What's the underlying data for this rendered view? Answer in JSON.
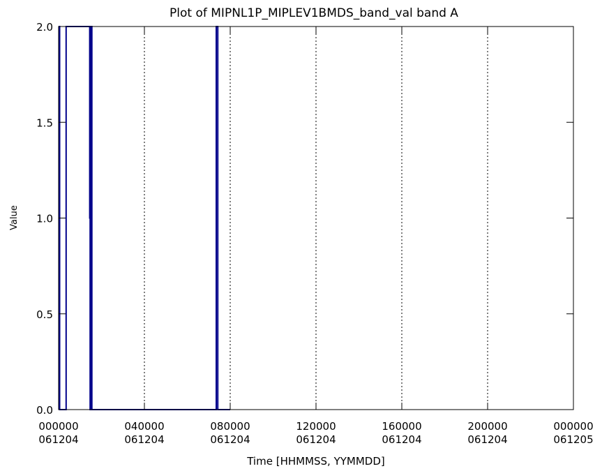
{
  "chart_data": {
    "type": "line",
    "title": "Plot of MIPNL1P_MIPLEV1BMDS_band_val band A",
    "xlabel": "Time [HHMMSS, YYMMDD]",
    "ylabel": "Value",
    "ylim": [
      0,
      2.0
    ],
    "xlim_hours": [
      0,
      24
    ],
    "grid": "vertical dotted lines at x ticks",
    "line_color": "#00008b",
    "x_ticks": [
      {
        "hours": 0,
        "time": "000000",
        "date": "061204"
      },
      {
        "hours": 4,
        "time": "040000",
        "date": "061204"
      },
      {
        "hours": 8,
        "time": "080000",
        "date": "061204"
      },
      {
        "hours": 12,
        "time": "120000",
        "date": "061204"
      },
      {
        "hours": 16,
        "time": "160000",
        "date": "061204"
      },
      {
        "hours": 20,
        "time": "200000",
        "date": "061204"
      },
      {
        "hours": 24,
        "time": "000000",
        "date": "061205"
      }
    ],
    "y_ticks": [
      "0.0",
      "0.5",
      "1.0",
      "1.5",
      "2.0"
    ],
    "series": [
      {
        "x_hours": [
          0.0,
          0.05,
          0.05,
          0.35,
          0.35,
          1.45,
          1.45,
          1.47,
          1.47,
          1.5,
          1.5,
          1.55,
          1.55,
          2.0,
          2.0,
          3.2,
          6.5,
          6.5,
          7.35,
          7.35,
          7.42,
          7.42,
          8.0,
          8.0,
          8.0,
          8.0,
          8.0,
          8.0,
          8.0
        ],
        "values": [
          2.0,
          2.0,
          0.0,
          0.0,
          2.0,
          2.0,
          1.0,
          1.0,
          0.0,
          0.0,
          2.0,
          2.0,
          0.0,
          0.0,
          0.0,
          0.0,
          0.0,
          0.0,
          0.0,
          2.0,
          2.0,
          0.0,
          0.0,
          0.0,
          0.0,
          0.0,
          0.0,
          0.0,
          0.0
        ]
      }
    ]
  }
}
